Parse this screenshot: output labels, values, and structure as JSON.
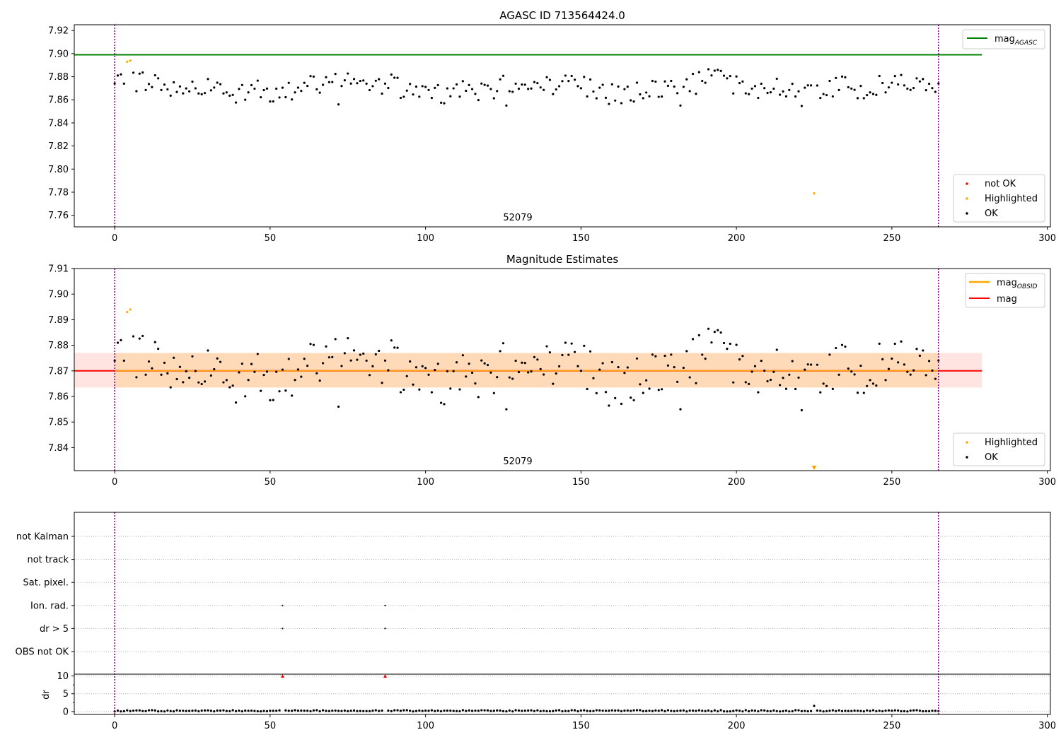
{
  "colors": {
    "ok": "#000000",
    "highlighted": "#ffa500",
    "not_ok": "#ff0000",
    "agasc_line": "#008000",
    "obsid_line": "#ffa500",
    "mag_line": "#ff0000",
    "obsid_band": "#ffdab9",
    "mag_band": "#ffe4e1",
    "obs_boundary": "#800080",
    "gridline": "#b0b0b0"
  },
  "chart_data": [
    {
      "type": "scatter",
      "title": "AGASC ID 713564424.0",
      "xlim": [
        -13,
        301
      ],
      "ylim": [
        7.75,
        7.925
      ],
      "xticks": [
        "0",
        "50",
        "100",
        "150",
        "200",
        "250",
        "300"
      ],
      "yticks": [
        "7.76",
        "7.78",
        "7.80",
        "7.82",
        "7.84",
        "7.86",
        "7.88",
        "7.90",
        "7.92"
      ],
      "obs_boundaries": [
        0,
        265
      ],
      "obs_label": "52079",
      "hline": {
        "name": "mag_AGASC",
        "value": 7.899,
        "x_range": [
          -13,
          279
        ]
      },
      "legend_top": [
        {
          "label": "mag",
          "sub": "AGASC",
          "color_key": "agasc_line"
        }
      ],
      "legend_bottom": [
        {
          "label": "not OK",
          "color_key": "not_ok"
        },
        {
          "label": "Highlighted",
          "color_key": "highlighted"
        },
        {
          "label": "OK",
          "color_key": "ok"
        }
      ],
      "highlighted_points": [
        [
          4,
          7.893
        ],
        [
          5,
          7.894
        ],
        [
          225,
          7.779
        ]
      ]
    },
    {
      "type": "scatter",
      "title": "Magnitude Estimates",
      "xlim": [
        -13,
        301
      ],
      "ylim": [
        7.831,
        7.91
      ],
      "xticks": [
        "0",
        "50",
        "100",
        "150",
        "200",
        "250",
        "300"
      ],
      "yticks": [
        "7.84",
        "7.85",
        "7.86",
        "7.87",
        "7.88",
        "7.89",
        "7.90",
        "7.91"
      ],
      "obs_boundaries": [
        0,
        265
      ],
      "obs_label": "52079",
      "mag": 7.87,
      "mag_band": [
        7.8635,
        7.877
      ],
      "x_range": [
        -13,
        279
      ],
      "legend_top": [
        {
          "label": "mag",
          "sub": "OBSID",
          "color_key": "obsid_line"
        },
        {
          "label": "mag",
          "sub": "",
          "color_key": "mag_line"
        }
      ],
      "legend_bottom": [
        {
          "label": "Highlighted",
          "color_key": "highlighted"
        },
        {
          "label": "OK",
          "color_key": "ok"
        }
      ],
      "highlighted_points": [
        [
          4,
          7.893
        ],
        [
          5,
          7.894
        ]
      ],
      "offscale_highlight": 225
    },
    {
      "type": "scatter",
      "title": "",
      "xlim": [
        -13,
        301
      ],
      "xticks": [
        "0",
        "50",
        "100",
        "150",
        "200",
        "250",
        "300"
      ],
      "flag_rows": [
        "not Kalman",
        "not track",
        "Sat. pixel.",
        "Ion. rad.",
        "dr > 5",
        "OBS not OK"
      ],
      "flag_points": [
        {
          "row": "Ion. rad.",
          "x": 54
        },
        {
          "row": "Ion. rad.",
          "x": 87
        },
        {
          "row": "dr > 5",
          "x": 54
        },
        {
          "row": "dr > 5",
          "x": 87
        }
      ],
      "dr_ylabel": "dr",
      "dr_yticks": [
        "0",
        "5",
        "10"
      ],
      "dr_ylim": [
        -0.8,
        10.5
      ],
      "dr_notok": [
        [
          54,
          10
        ],
        [
          87,
          10
        ]
      ],
      "dr_spike": [
        225,
        1.6
      ],
      "obs_boundaries": [
        0,
        265
      ]
    }
  ]
}
